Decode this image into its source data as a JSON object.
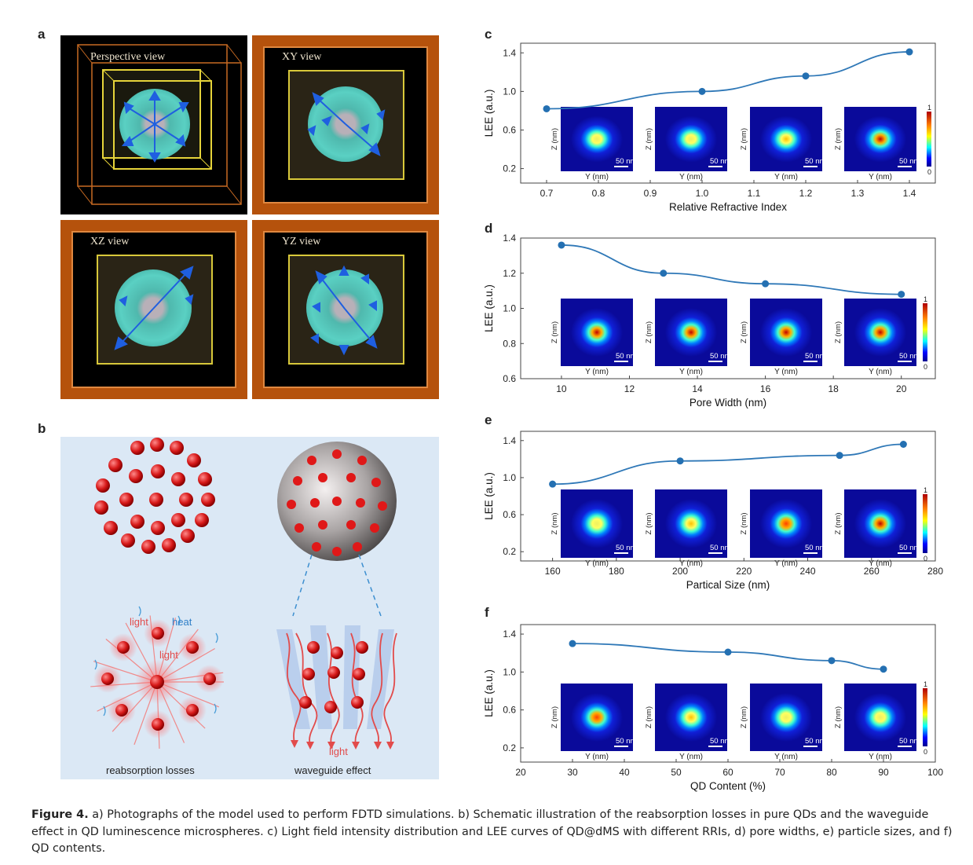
{
  "panel_a": {
    "letter": "a",
    "views": [
      "Perspective view",
      "XY view",
      "XZ view",
      "YZ view"
    ]
  },
  "panel_b": {
    "letter": "b",
    "labels": {
      "light1": "light",
      "heat": "heat",
      "light2": "light",
      "light3": "light",
      "reabsorption": "reabsorption losses",
      "waveguide": "waveguide effect"
    }
  },
  "inset_labels": {
    "z": "Z (nm)",
    "y": "Y (nm)",
    "scale": "50 nm",
    "cb_max": "1",
    "cb_min": "0"
  },
  "caption": {
    "figure": "Figure 4.",
    "text": " a) Photographs of the model used to perform FDTD simulations. b) Schematic illustration of the reabsorption losses in pure QDs and the waveguide effect in QD luminescence microspheres. c) Light field intensity distribution and LEE curves of QD@dMS with different RRIs, d) pore widths, e) particle sizes, and f) QD contents."
  },
  "chart_data": [
    {
      "panel": "c",
      "type": "line",
      "xlabel": "Relative Refractive Index",
      "ylabel": "LEE (a.u.)",
      "x": [
        0.7,
        1.0,
        1.2,
        1.4
      ],
      "y": [
        0.82,
        1.0,
        1.16,
        1.41
      ],
      "xlim": [
        0.65,
        1.45
      ],
      "ylim": [
        0.05,
        1.5
      ],
      "xticks": [
        "0.7",
        "0.8",
        "0.9",
        "1.0",
        "1.1",
        "1.2",
        "1.3",
        "1.4"
      ],
      "xtickvals": [
        0.7,
        0.8,
        0.9,
        1.0,
        1.1,
        1.2,
        1.3,
        1.4
      ],
      "yticks": [
        "0.2",
        "0.6",
        "1.0",
        "1.4"
      ],
      "ytickvals": [
        0.2,
        0.6,
        1.0,
        1.4
      ],
      "spots": [
        0.55,
        0.55,
        0.6,
        0.9
      ]
    },
    {
      "panel": "d",
      "type": "line",
      "xlabel": "Pore Width (nm)",
      "ylabel": "LEE (a.u.)",
      "x": [
        10,
        13,
        16,
        20
      ],
      "y": [
        1.36,
        1.2,
        1.14,
        1.08
      ],
      "xlim": [
        8.8,
        21
      ],
      "ylim": [
        0.6,
        1.4
      ],
      "xticks": [
        "10",
        "12",
        "14",
        "16",
        "18",
        "20"
      ],
      "xtickvals": [
        10,
        12,
        14,
        16,
        18,
        20
      ],
      "yticks": [
        "0.6",
        "0.8",
        "1.0",
        "1.2",
        "1.4"
      ],
      "ytickvals": [
        0.6,
        0.8,
        1.0,
        1.2,
        1.4
      ],
      "spots": [
        1.0,
        0.95,
        0.92,
        0.9
      ]
    },
    {
      "panel": "e",
      "type": "line",
      "xlabel": "Partical Size (nm)",
      "ylabel": "LEE (a.u.)",
      "x": [
        160,
        200,
        250,
        270
      ],
      "y": [
        0.93,
        1.18,
        1.24,
        1.36
      ],
      "xlim": [
        150,
        280
      ],
      "ylim": [
        0.1,
        1.5
      ],
      "xticks": [
        "160",
        "180",
        "200",
        "220",
        "240",
        "260",
        "280"
      ],
      "xtickvals": [
        160,
        180,
        200,
        220,
        240,
        260,
        280
      ],
      "yticks": [
        "0.2",
        "0.6",
        "1.0",
        "1.4"
      ],
      "ytickvals": [
        0.2,
        0.6,
        1.0,
        1.4
      ],
      "spots": [
        0.55,
        0.7,
        0.85,
        0.9
      ]
    },
    {
      "panel": "f",
      "type": "line",
      "xlabel": "QD Content (%)",
      "ylabel": "LEE (a.u.)",
      "x": [
        30,
        60,
        80,
        90
      ],
      "y": [
        1.3,
        1.21,
        1.12,
        1.03
      ],
      "xlim": [
        20,
        100
      ],
      "ylim": [
        0.05,
        1.5
      ],
      "xticks": [
        "20",
        "30",
        "40",
        "50",
        "60",
        "70",
        "80",
        "90",
        "100"
      ],
      "xtickvals": [
        20,
        30,
        40,
        50,
        60,
        70,
        80,
        90,
        100
      ],
      "yticks": [
        "0.2",
        "0.6",
        "1.0",
        "1.4"
      ],
      "ytickvals": [
        0.2,
        0.6,
        1.0,
        1.4
      ],
      "spots": [
        0.85,
        0.7,
        0.55,
        0.5
      ]
    }
  ],
  "colors": {
    "line": "#2f78b7",
    "marker": "#2470b2",
    "schematic_bg": "#dbe8f5",
    "red_dot": "#d62020",
    "arrow": "#1f5fe0"
  }
}
